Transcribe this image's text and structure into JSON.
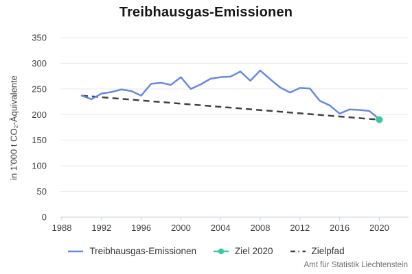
{
  "attribution": "Amt für Statistik Liechtenstein",
  "chart_data": {
    "type": "line",
    "title": "Treibhausgas-Emissionen",
    "xlabel": "",
    "ylabel": "in 1'000 t CO₂-Äquivalente",
    "ylim": [
      0,
      350
    ],
    "y_ticks": [
      0,
      50,
      100,
      150,
      200,
      250,
      300,
      350
    ],
    "x_ticks": [
      1988,
      1992,
      1996,
      2000,
      2004,
      2008,
      2012,
      2016,
      2020
    ],
    "grid": "horizontal",
    "legend_position": "bottom",
    "x": [
      1990,
      1991,
      1992,
      1993,
      1994,
      1995,
      1996,
      1997,
      1998,
      1999,
      2000,
      2001,
      2002,
      2003,
      2004,
      2005,
      2006,
      2007,
      2008,
      2009,
      2010,
      2011,
      2012,
      2013,
      2014,
      2015,
      2016,
      2017,
      2018,
      2019,
      2020
    ],
    "series": [
      {
        "id": "emissionen",
        "name": "Treibhausgas-Emissionen",
        "type": "line",
        "color": "#6688e6",
        "values": [
          237,
          230,
          241,
          244,
          249,
          246,
          237,
          260,
          262,
          258,
          273,
          250,
          259,
          270,
          273,
          274,
          284,
          266,
          286,
          269,
          253,
          243,
          252,
          251,
          227,
          218,
          202,
          210,
          209,
          207,
          191
        ]
      },
      {
        "id": "ziel",
        "name": "Ziel 2020",
        "type": "point",
        "color": "#3bc8a3",
        "x": 2020,
        "value": 190
      },
      {
        "id": "zielpfad",
        "name": "Zielpfad",
        "type": "dashed-line",
        "color": "#404040",
        "points": [
          {
            "x": 1990,
            "y": 237
          },
          {
            "x": 2020,
            "y": 190
          }
        ]
      }
    ]
  }
}
